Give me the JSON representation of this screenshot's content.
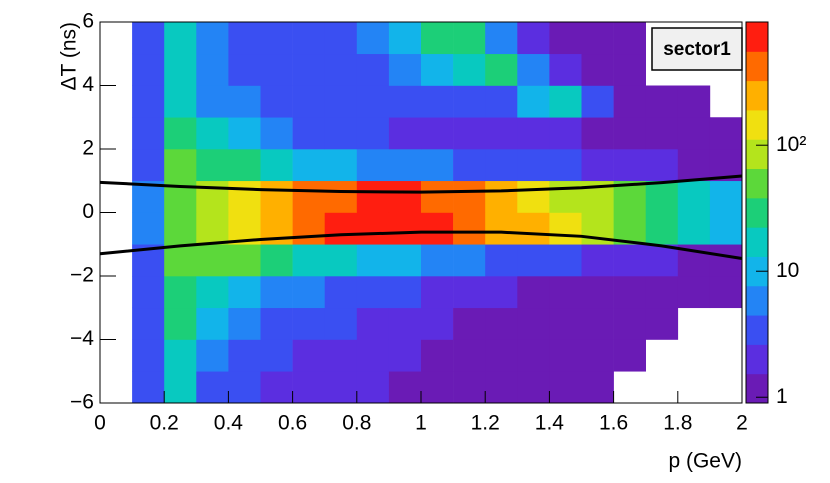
{
  "chart_data": {
    "type": "heatmap",
    "x_label": "p (GeV)",
    "y_label": "ΔT (ns)",
    "legend_text": "sector1",
    "x_bins": [
      0,
      0.1,
      0.2,
      0.3,
      0.4,
      0.5,
      0.6,
      0.7,
      0.8,
      0.9,
      1,
      1.1,
      1.2,
      1.3,
      1.4,
      1.5,
      1.6,
      1.7,
      1.8,
      1.9,
      2
    ],
    "y_bins": [
      -6,
      -5,
      -4,
      -3,
      -2,
      -1,
      0,
      1,
      2,
      3,
      4,
      5,
      6
    ],
    "z": [
      [
        null,
        3,
        15,
        4,
        3,
        2,
        2,
        2,
        2,
        1,
        1,
        1,
        1,
        1,
        1,
        1,
        null,
        null,
        null,
        null
      ],
      [
        null,
        3,
        18,
        6,
        4,
        3,
        2,
        2,
        2,
        2,
        1,
        1,
        1,
        1,
        1,
        1,
        1,
        null,
        null,
        null
      ],
      [
        null,
        3,
        25,
        10,
        6,
        4,
        3,
        3,
        2,
        2,
        2,
        1,
        1,
        1,
        1,
        1,
        1,
        1,
        null,
        null
      ],
      [
        null,
        3,
        35,
        20,
        12,
        7,
        5,
        4,
        3,
        3,
        2,
        2,
        2,
        1,
        1,
        1,
        1,
        1,
        1,
        1
      ],
      [
        null,
        4,
        45,
        45,
        40,
        30,
        20,
        14,
        10,
        8,
        6,
        5,
        4,
        3,
        3,
        2,
        2,
        2,
        1,
        1
      ],
      [
        null,
        5,
        60,
        110,
        180,
        280,
        420,
        560,
        700,
        700,
        560,
        420,
        300,
        200,
        130,
        80,
        50,
        30,
        20,
        12
      ],
      [
        null,
        5,
        60,
        100,
        160,
        250,
        380,
        500,
        620,
        620,
        500,
        380,
        270,
        180,
        110,
        70,
        45,
        28,
        18,
        10
      ],
      [
        null,
        4,
        40,
        35,
        25,
        18,
        12,
        9,
        7,
        6,
        5,
        4,
        4,
        3,
        3,
        2,
        2,
        2,
        1,
        1
      ],
      [
        null,
        3,
        30,
        14,
        8,
        5,
        4,
        3,
        3,
        2,
        2,
        2,
        2,
        2,
        2,
        1,
        1,
        1,
        1,
        1
      ],
      [
        null,
        3,
        22,
        7,
        5,
        4,
        3,
        3,
        3,
        3,
        3,
        3,
        4,
        12,
        20,
        3,
        1,
        1,
        1,
        null
      ],
      [
        null,
        3,
        18,
        6,
        4,
        3,
        3,
        3,
        4,
        5,
        8,
        20,
        30,
        6,
        2,
        1,
        1,
        null,
        null,
        null
      ],
      [
        null,
        3,
        15,
        5,
        4,
        3,
        3,
        4,
        6,
        12,
        35,
        25,
        5,
        2,
        1,
        1,
        1,
        null,
        null,
        null
      ]
    ],
    "curves": [
      {
        "x": [
          0,
          0.25,
          0.5,
          0.75,
          1,
          1.25,
          1.5,
          1.75,
          2
        ],
        "y": [
          0.95,
          0.82,
          0.72,
          0.66,
          0.64,
          0.68,
          0.78,
          0.94,
          1.15
        ]
      },
      {
        "x": [
          0,
          0.25,
          0.5,
          0.75,
          1,
          1.25,
          1.5,
          1.75,
          2
        ],
        "y": [
          -1.3,
          -1.05,
          -0.85,
          -0.7,
          -0.62,
          -0.62,
          -0.75,
          -1.05,
          -1.45
        ]
      }
    ],
    "curve_color": "#000000",
    "xlim": [
      0,
      2
    ],
    "ylim": [
      -6,
      6
    ],
    "xticks": [
      0,
      0.2,
      0.4,
      0.6,
      0.8,
      1,
      1.2,
      1.4,
      1.6,
      1.8,
      2
    ],
    "yticks": [
      {
        "value": -6,
        "label": "−6"
      },
      {
        "value": -4,
        "label": "−4"
      },
      {
        "value": -2,
        "label": "−2"
      },
      0,
      2,
      4,
      6
    ],
    "z_log": true,
    "zlim": [
      0.9,
      950
    ],
    "zticks": [
      1,
      10,
      {
        "value": 100,
        "label": "10²"
      }
    ],
    "colormap": [
      "#6a1bb5",
      "#5b2ee0",
      "#3a4ff2",
      "#2384f5",
      "#12b4ea",
      "#08c9c0",
      "#1ccf78",
      "#5cd83a",
      "#b4e41c",
      "#f0e010",
      "#ffb000",
      "#ff6a00",
      "#ff1e10"
    ]
  }
}
